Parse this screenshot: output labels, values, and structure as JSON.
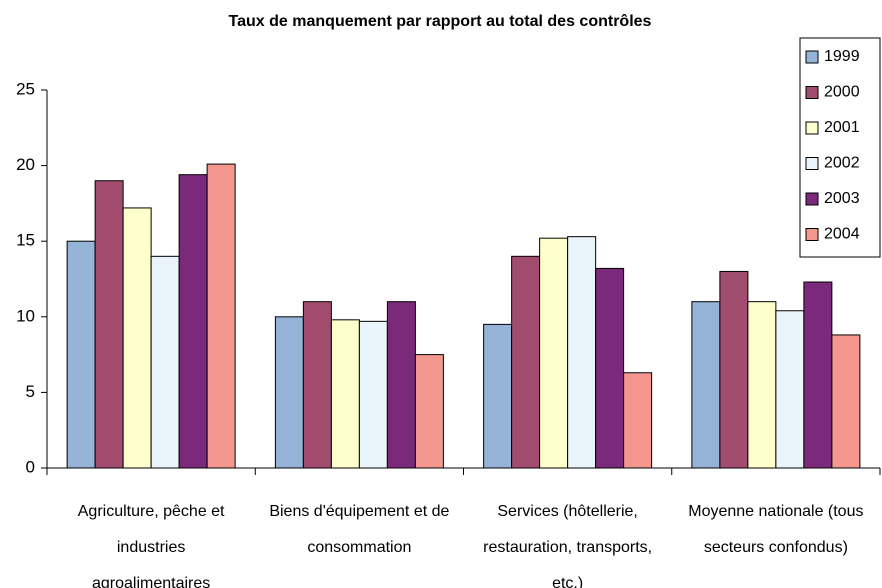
{
  "chart_data": {
    "type": "bar",
    "title": "Taux de manquement par rapport au total des contrôles",
    "categories": [
      "Agriculture, pêche et industries agroalimentaires",
      "Biens d'équipement et de consommation",
      "Services (hôtellerie, restauration, transports, etc.)",
      "Moyenne nationale (tous secteurs confondus)"
    ],
    "series": [
      {
        "name": "1999",
        "color": "#95b3d7",
        "values": [
          15.0,
          10.0,
          9.5,
          11.0
        ]
      },
      {
        "name": "2000",
        "color": "#a24d6f",
        "values": [
          19.0,
          11.0,
          14.0,
          13.0
        ]
      },
      {
        "name": "2001",
        "color": "#ffffcc",
        "values": [
          17.2,
          9.8,
          15.2,
          11.0
        ]
      },
      {
        "name": "2002",
        "color": "#eaf4fb",
        "values": [
          14.0,
          9.7,
          15.3,
          10.4
        ]
      },
      {
        "name": "2003",
        "color": "#7b2a7b",
        "values": [
          19.4,
          11.0,
          13.2,
          12.3
        ]
      },
      {
        "name": "2004",
        "color": "#f4978e",
        "values": [
          20.1,
          7.5,
          6.3,
          8.8
        ]
      }
    ],
    "ylim": [
      0,
      25
    ],
    "yticks": [
      0,
      5,
      10,
      15,
      20,
      25
    ],
    "grid": false,
    "legend": "right"
  }
}
